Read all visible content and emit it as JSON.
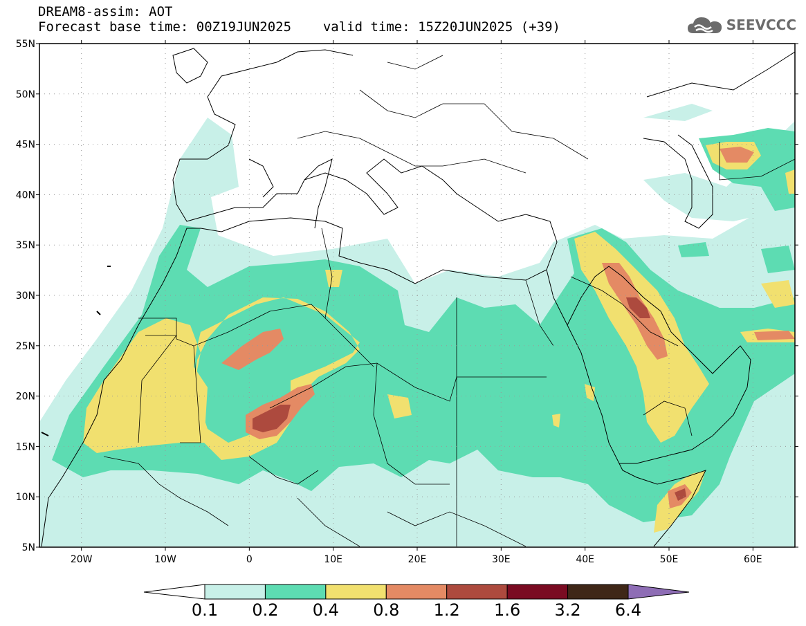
{
  "header": {
    "line1": "DREAM8-assim: AOT",
    "base_label": "Forecast base time: 00Z19JUN2025",
    "valid_label": "valid time: 15Z20JUN2025 (+39)"
  },
  "logo": {
    "text": "SEEVCCC",
    "icon": "cloud-icon"
  },
  "map": {
    "lon_range": [
      -25,
      65
    ],
    "lat_range": [
      5,
      55
    ],
    "lat_ticks": [
      "5N",
      "10N",
      "15N",
      "20N",
      "25N",
      "30N",
      "35N",
      "40N",
      "45N",
      "50N",
      "55N"
    ],
    "lon_ticks": [
      "20W",
      "10W",
      "0",
      "10E",
      "20E",
      "30E",
      "40E",
      "50E",
      "60E"
    ],
    "gridlines": "dotted"
  },
  "legend": {
    "labels": [
      "0.1",
      "0.2",
      "0.4",
      "0.8",
      "1.2",
      "1.6",
      "3.2",
      "6.4"
    ],
    "colors": [
      "#c8f0e8",
      "#5ddcb2",
      "#f1e06f",
      "#e48a64",
      "#ad4a3e",
      "#7a0b22",
      "#3f2717",
      "#8e6db5"
    ]
  }
}
